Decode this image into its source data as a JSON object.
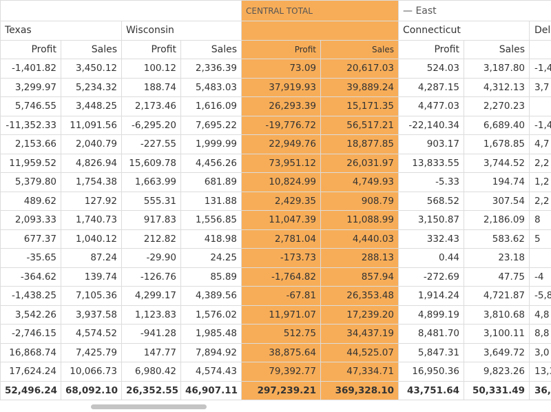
{
  "header": {
    "group_label": "CENTRAL TOTAL",
    "east_label": "East",
    "states": [
      "Texas",
      "Wisconsin",
      "Connecticut",
      "Dela"
    ],
    "measures": [
      "Profit",
      "Sales",
      "Profit",
      "Sales",
      "Profit",
      "Sales",
      "Profit",
      "Sales"
    ]
  },
  "rows": [
    [
      "-1,401.82",
      "3,450.12",
      "100.12",
      "2,336.39",
      "73.09",
      "20,617.03",
      "524.03",
      "3,187.80",
      "-1,4"
    ],
    [
      "3,299.97",
      "5,234.32",
      "188.74",
      "5,483.03",
      "37,919.93",
      "39,889.24",
      "4,287.15",
      "4,312.13",
      "3,7"
    ],
    [
      "5,746.55",
      "3,448.25",
      "2,173.46",
      "1,616.09",
      "26,293.39",
      "15,171.35",
      "4,477.03",
      "2,270.23"
    ],
    [
      "-11,352.33",
      "11,091.56",
      "-6,295.20",
      "7,695.22",
      "-19,776.72",
      "56,517.21",
      "-22,140.34",
      "6,689.40",
      "-1,4"
    ],
    [
      "2,153.66",
      "2,040.79",
      "-227.55",
      "1,999.99",
      "22,949.76",
      "18,877.85",
      "903.17",
      "1,678.85",
      "4,7"
    ],
    [
      "11,959.52",
      "4,826.94",
      "15,609.78",
      "4,456.26",
      "73,951.12",
      "26,031.97",
      "13,833.55",
      "3,744.52",
      "2,2"
    ],
    [
      "5,379.80",
      "1,754.38",
      "1,663.99",
      "681.89",
      "10,824.99",
      "4,749.93",
      "-5.33",
      "194.74",
      "1,2"
    ],
    [
      "489.62",
      "127.92",
      "555.31",
      "131.88",
      "2,429.35",
      "908.79",
      "568.52",
      "307.54",
      "2,2"
    ],
    [
      "2,093.33",
      "1,740.73",
      "917.83",
      "1,556.85",
      "11,047.39",
      "11,088.99",
      "3,150.87",
      "2,186.09",
      "8"
    ],
    [
      "677.37",
      "1,040.12",
      "212.82",
      "418.98",
      "2,781.04",
      "4,440.03",
      "332.43",
      "583.62",
      "5"
    ],
    [
      "-35.65",
      "87.24",
      "-29.90",
      "24.25",
      "-173.73",
      "288.13",
      "0.44",
      "23.18"
    ],
    [
      "-364.62",
      "139.74",
      "-126.76",
      "85.89",
      "-1,764.82",
      "857.94",
      "-272.69",
      "47.75",
      "-4"
    ],
    [
      "-1,438.25",
      "7,105.36",
      "4,299.17",
      "4,389.56",
      "-67.81",
      "26,353.48",
      "1,914.24",
      "4,721.87",
      "-5,8"
    ],
    [
      "3,542.26",
      "3,937.58",
      "1,123.83",
      "1,576.02",
      "11,971.07",
      "17,239.20",
      "4,899.19",
      "3,810.68",
      "4,8"
    ],
    [
      "-2,746.15",
      "4,574.52",
      "-941.28",
      "1,985.48",
      "512.75",
      "34,437.19",
      "8,481.70",
      "3,100.11",
      "8,8"
    ],
    [
      "16,868.74",
      "7,425.79",
      "147.77",
      "7,894.92",
      "38,875.64",
      "44,525.07",
      "5,847.31",
      "3,649.72",
      "3,0"
    ],
    [
      "17,624.24",
      "10,066.73",
      "6,980.42",
      "4,574.43",
      "79,392.77",
      "47,334.71",
      "16,950.36",
      "9,823.26",
      "13,3"
    ]
  ],
  "total": [
    "52,496.24",
    "68,092.10",
    "26,352.55",
    "46,907.11",
    "297,239.21",
    "369,328.10",
    "43,751.64",
    "50,331.49",
    "36,3"
  ]
}
